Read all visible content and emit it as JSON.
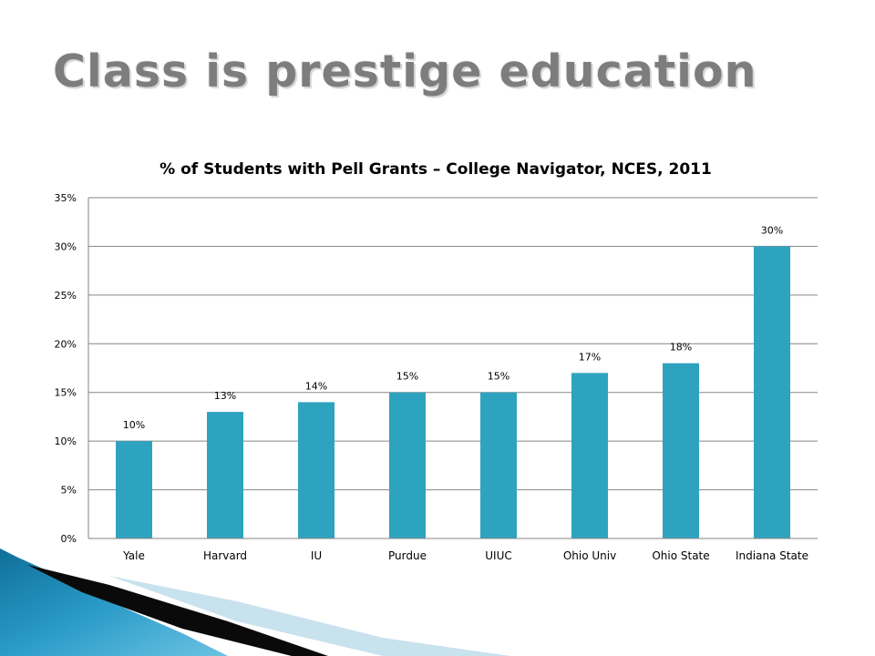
{
  "slide": {
    "title": "Class is prestige education"
  },
  "colors": {
    "bar": "#2ea3c0",
    "gridline": "#868686",
    "axis": "#868686",
    "title_text": "#7d7d7d",
    "deco_blue": "#1e88b4",
    "deco_dark": "#0a0a0a",
    "deco_light": "#c8e2ee"
  },
  "chart_data": {
    "type": "bar",
    "title": "% of Students with Pell Grants – College Navigator, NCES, 2011",
    "xlabel": "",
    "ylabel": "",
    "categories": [
      "Yale",
      "Harvard",
      "IU",
      "Purdue",
      "UIUC",
      "Ohio Univ",
      "Ohio State",
      "Indiana State"
    ],
    "values": [
      10,
      13,
      14,
      15,
      15,
      17,
      18,
      30
    ],
    "data_labels": [
      "10%",
      "13%",
      "14%",
      "15%",
      "15%",
      "17%",
      "18%",
      "30%"
    ],
    "ylim": [
      0,
      35
    ],
    "y_ticks": [
      0,
      5,
      10,
      15,
      20,
      25,
      30,
      35
    ],
    "y_tick_labels": [
      "0%",
      "5%",
      "10%",
      "15%",
      "20%",
      "25%",
      "30%",
      "35%"
    ],
    "grid": true,
    "legend": "none"
  }
}
